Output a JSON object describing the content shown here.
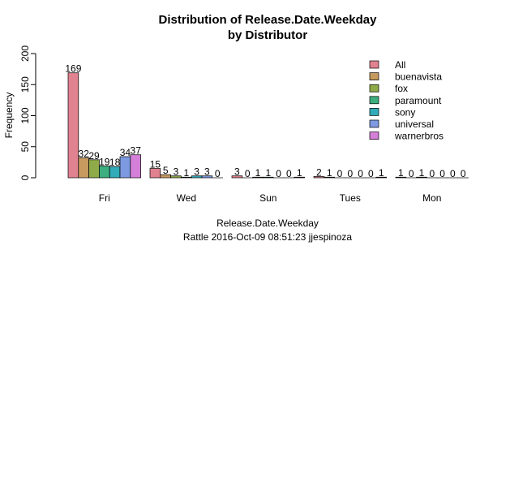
{
  "chart_data": {
    "type": "bar",
    "title": [
      "Distribution of Release.Date.Weekday",
      "by Distributor"
    ],
    "xlabel": "Release.Date.Weekday",
    "ylabel": "Frequency",
    "subtitle": "Rattle 2016-Oct-09 08:51:23 jjespinoza",
    "ylim": [
      0,
      200
    ],
    "yticks": [
      "0",
      "50",
      "100",
      "150",
      "200"
    ],
    "categories": [
      "Fri",
      "Wed",
      "Sun",
      "Tues",
      "Mon"
    ],
    "legend_position": "top-right",
    "grid": false,
    "series": [
      {
        "name": "All",
        "color": "#E08290",
        "values": [
          169,
          15,
          3,
          2,
          1
        ]
      },
      {
        "name": "buenavista",
        "color": "#C79A5F",
        "values": [
          32,
          5,
          0,
          1,
          0
        ]
      },
      {
        "name": "fox",
        "color": "#8FAA48",
        "values": [
          29,
          3,
          1,
          0,
          1
        ]
      },
      {
        "name": "paramount",
        "color": "#3DAE7E",
        "values": [
          19,
          1,
          1,
          0,
          0
        ]
      },
      {
        "name": "sony",
        "color": "#33ABB9",
        "values": [
          18,
          3,
          0,
          0,
          0
        ]
      },
      {
        "name": "universal",
        "color": "#7D99E0",
        "values": [
          34,
          3,
          0,
          0,
          0
        ]
      },
      {
        "name": "warnerbros",
        "color": "#D47FD8",
        "values": [
          37,
          0,
          1,
          1,
          0
        ]
      }
    ]
  }
}
